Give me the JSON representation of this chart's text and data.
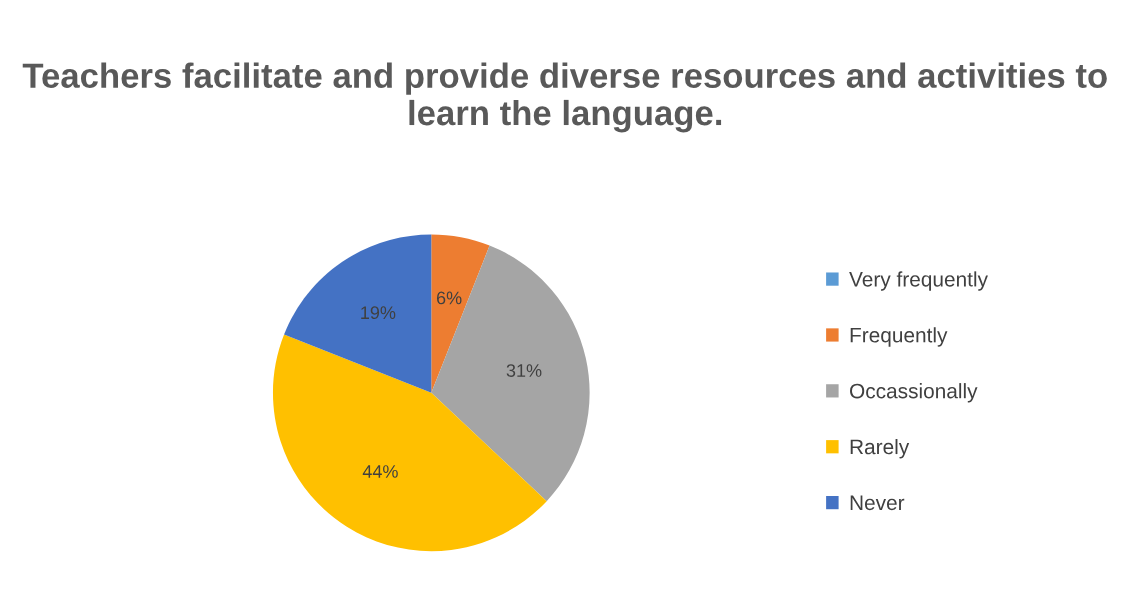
{
  "chart_data": {
    "type": "pie",
    "title": "Teachers facilitate and provide diverse resources and activities to learn the language.",
    "categories": [
      "Very frequently",
      "Frequently",
      "Occassionally",
      "Rarely",
      "Never"
    ],
    "values": [
      0,
      6,
      31,
      44,
      19
    ],
    "colors": [
      "#5b9bd5",
      "#ed7d31",
      "#a5a5a5",
      "#ffc000",
      "#4472c4"
    ],
    "value_labels": [
      null,
      "6%",
      "31%",
      "44%",
      "19%"
    ],
    "legend": "right"
  }
}
